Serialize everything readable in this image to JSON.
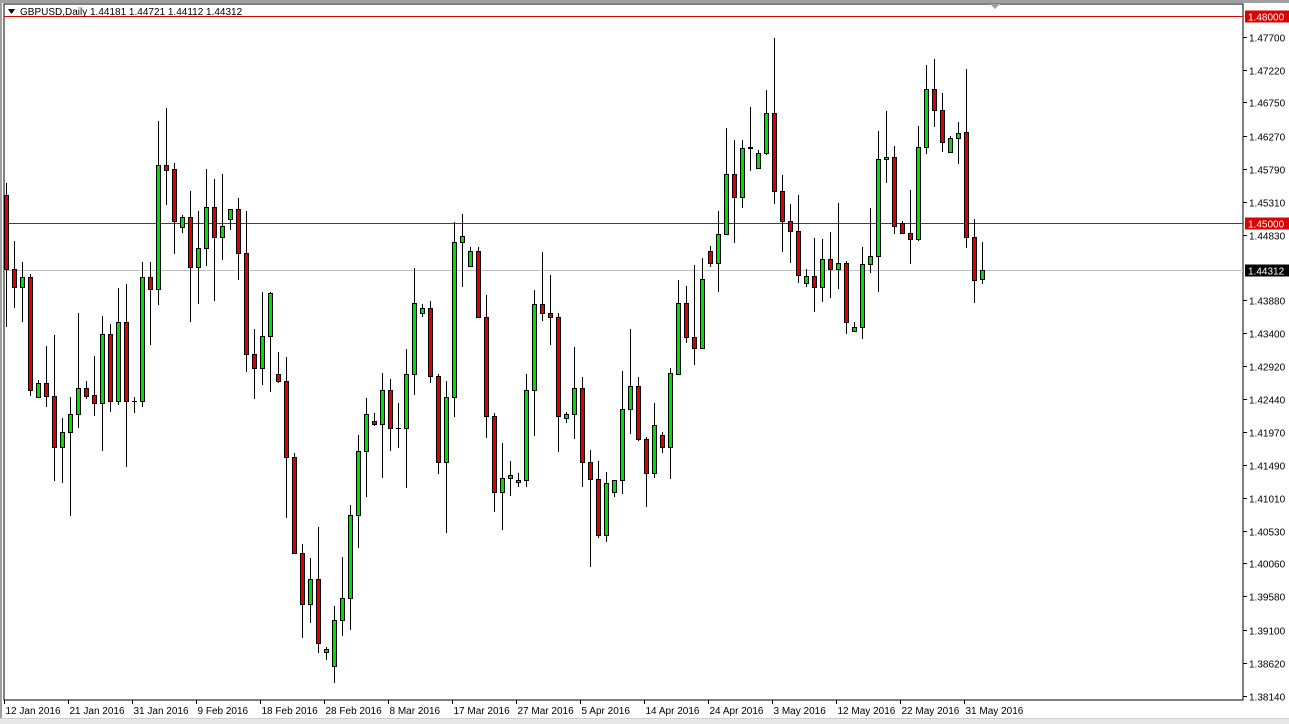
{
  "header": {
    "symbol": "GBPUSD,Daily",
    "ohlc": "1.44181 1.44721 1.44112 1.44312"
  },
  "colors": {
    "bull": "#00dd00",
    "bear": "#dd0000",
    "outline": "#000000",
    "level_line": "#dd0000",
    "price_line": "#c0c0c0",
    "price_label_bg": "#000000"
  },
  "chart_data": {
    "type": "candlestick",
    "title": "GBPUSD,Daily",
    "ylim": [
      1.3814,
      1.48
    ],
    "y_ticks": [
      "1.47700",
      "1.47220",
      "1.46750",
      "1.46270",
      "1.45790",
      "1.45310",
      "1.44830",
      "1.43880",
      "1.43400",
      "1.42920",
      "1.42440",
      "1.41970",
      "1.41490",
      "1.41010",
      "1.40530",
      "1.40060",
      "1.39580",
      "1.39100",
      "1.38620",
      "1.38140"
    ],
    "x_labels": [
      "12 Jan 2016",
      "21 Jan 2016",
      "31 Jan 2016",
      "9 Feb 2016",
      "18 Feb 2016",
      "28 Feb 2016",
      "8 Mar 2016",
      "17 Mar 2016",
      "27 Mar 2016",
      "5 Apr 2016",
      "14 Apr 2016",
      "24 Apr 2016",
      "3 May 2016",
      "12 May 2016",
      "22 May 2016",
      "31 May 2016"
    ],
    "levels": [
      {
        "price": "1.48000",
        "style": "red"
      },
      {
        "price": "1.45000",
        "style": "red"
      }
    ],
    "current_price": "1.44312",
    "candles_ohlc": [
      [
        1.4541,
        1.4558,
        1.4349,
        1.4433
      ],
      [
        1.4433,
        1.4474,
        1.4377,
        1.4407
      ],
      [
        1.4407,
        1.4444,
        1.4357,
        1.4422
      ],
      [
        1.4422,
        1.4426,
        1.4249,
        1.4257
      ],
      [
        1.4248,
        1.4272,
        1.4248,
        1.4268
      ],
      [
        1.4268,
        1.4322,
        1.4233,
        1.4249
      ],
      [
        1.4249,
        1.4338,
        1.4126,
        1.4175
      ],
      [
        1.4175,
        1.4217,
        1.4123,
        1.4197
      ],
      [
        1.4197,
        1.4248,
        1.4075,
        1.4223
      ],
      [
        1.4223,
        1.437,
        1.4203,
        1.4261
      ],
      [
        1.4261,
        1.4271,
        1.4245,
        1.4249
      ],
      [
        1.4251,
        1.4307,
        1.422,
        1.4239
      ],
      [
        1.4239,
        1.4365,
        1.4169,
        1.4339
      ],
      [
        1.4339,
        1.4354,
        1.4226,
        1.4241
      ],
      [
        1.4241,
        1.4406,
        1.4236,
        1.4356
      ],
      [
        1.4356,
        1.4412,
        1.4146,
        1.4241
      ],
      [
        1.4241,
        1.4248,
        1.4225,
        1.4242
      ],
      [
        1.4241,
        1.4444,
        1.4233,
        1.4422
      ],
      [
        1.4422,
        1.4444,
        1.4323,
        1.4404
      ],
      [
        1.4404,
        1.4648,
        1.4381,
        1.4584
      ],
      [
        1.4584,
        1.4667,
        1.4526,
        1.4577
      ],
      [
        1.4578,
        1.4587,
        1.4455,
        1.4503
      ],
      [
        1.4494,
        1.4512,
        1.4486,
        1.4509
      ],
      [
        1.4509,
        1.4547,
        1.4357,
        1.4436
      ],
      [
        1.4436,
        1.4518,
        1.4383,
        1.4464
      ],
      [
        1.4464,
        1.4578,
        1.4438,
        1.4523
      ],
      [
        1.4523,
        1.4564,
        1.4387,
        1.448
      ],
      [
        1.448,
        1.4571,
        1.4446,
        1.4496
      ],
      [
        1.4506,
        1.452,
        1.449,
        1.452
      ],
      [
        1.452,
        1.4536,
        1.4418,
        1.4457
      ],
      [
        1.4457,
        1.4518,
        1.4284,
        1.431
      ],
      [
        1.431,
        1.4346,
        1.4245,
        1.429
      ],
      [
        1.429,
        1.44,
        1.4265,
        1.4336
      ],
      [
        1.4336,
        1.44,
        1.4255,
        1.4399
      ],
      [
        1.4281,
        1.4313,
        1.4268,
        1.4271
      ],
      [
        1.4271,
        1.4306,
        1.4072,
        1.4161
      ],
      [
        1.4161,
        1.4166,
        1.4019,
        1.4021
      ],
      [
        1.4021,
        1.4034,
        1.3898,
        1.3947
      ],
      [
        1.3947,
        1.4014,
        1.392,
        1.3984
      ],
      [
        1.3984,
        1.4059,
        1.3876,
        1.3891
      ],
      [
        1.3877,
        1.3885,
        1.3866,
        1.3882
      ],
      [
        1.3857,
        1.3944,
        1.3833,
        1.3924
      ],
      [
        1.3924,
        1.4016,
        1.39,
        1.3956
      ],
      [
        1.3956,
        1.4091,
        1.391,
        1.4076
      ],
      [
        1.4076,
        1.4193,
        1.4029,
        1.4169
      ],
      [
        1.4169,
        1.4246,
        1.4103,
        1.4223
      ],
      [
        1.4213,
        1.4225,
        1.4205,
        1.4209
      ],
      [
        1.4209,
        1.4283,
        1.413,
        1.4258
      ],
      [
        1.4258,
        1.4274,
        1.4169,
        1.4203
      ],
      [
        1.4203,
        1.4239,
        1.4174,
        1.4203
      ],
      [
        1.4203,
        1.4317,
        1.4116,
        1.4281
      ],
      [
        1.4281,
        1.4435,
        1.4251,
        1.4384
      ],
      [
        1.437,
        1.4383,
        1.4364,
        1.4377
      ],
      [
        1.4377,
        1.4387,
        1.4268,
        1.4278
      ],
      [
        1.4278,
        1.4281,
        1.4136,
        1.4153
      ],
      [
        1.4153,
        1.4271,
        1.405,
        1.4248
      ],
      [
        1.4248,
        1.4502,
        1.4219,
        1.4473
      ],
      [
        1.4473,
        1.4513,
        1.4407,
        1.4481
      ],
      [
        1.4438,
        1.4465,
        1.4438,
        1.446
      ],
      [
        1.446,
        1.4465,
        1.4362,
        1.4364
      ],
      [
        1.4364,
        1.4396,
        1.4188,
        1.422
      ],
      [
        1.422,
        1.4225,
        1.408,
        1.411
      ],
      [
        1.411,
        1.4181,
        1.4054,
        1.413
      ],
      [
        1.413,
        1.4155,
        1.4104,
        1.4135
      ],
      [
        1.4124,
        1.4137,
        1.4117,
        1.4127
      ],
      [
        1.4127,
        1.4281,
        1.4117,
        1.4258
      ],
      [
        1.4258,
        1.4403,
        1.4191,
        1.4383
      ],
      [
        1.4383,
        1.4458,
        1.4358,
        1.437
      ],
      [
        1.437,
        1.4425,
        1.4323,
        1.4364
      ],
      [
        1.4364,
        1.437,
        1.4168,
        1.422
      ],
      [
        1.4217,
        1.4226,
        1.421,
        1.4223
      ],
      [
        1.4223,
        1.432,
        1.4187,
        1.4261
      ],
      [
        1.4261,
        1.4277,
        1.4117,
        1.4153
      ],
      [
        1.4153,
        1.417,
        1.4001,
        1.4129
      ],
      [
        1.4129,
        1.4155,
        1.4043,
        1.4047
      ],
      [
        1.4047,
        1.4139,
        1.4037,
        1.4123
      ],
      [
        1.411,
        1.4127,
        1.4103,
        1.4127
      ],
      [
        1.4127,
        1.4285,
        1.4106,
        1.423
      ],
      [
        1.423,
        1.4346,
        1.4194,
        1.4264
      ],
      [
        1.4264,
        1.4277,
        1.4183,
        1.4187
      ],
      [
        1.4187,
        1.419,
        1.4088,
        1.4137
      ],
      [
        1.4137,
        1.4239,
        1.413,
        1.4207
      ],
      [
        1.4193,
        1.4196,
        1.4166,
        1.4175
      ],
      [
        1.4175,
        1.429,
        1.4129,
        1.4283
      ],
      [
        1.4281,
        1.4418,
        1.4281,
        1.4384
      ],
      [
        1.4384,
        1.4409,
        1.4326,
        1.4335
      ],
      [
        1.4335,
        1.4439,
        1.4294,
        1.4319
      ],
      [
        1.4319,
        1.4449,
        1.4317,
        1.4419
      ],
      [
        1.446,
        1.4467,
        1.4436,
        1.4442
      ],
      [
        1.4442,
        1.4518,
        1.44,
        1.4484
      ],
      [
        1.4484,
        1.4638,
        1.4482,
        1.4571
      ],
      [
        1.4571,
        1.4621,
        1.4471,
        1.4538
      ],
      [
        1.4538,
        1.4621,
        1.4522,
        1.4609
      ],
      [
        1.4609,
        1.4669,
        1.4576,
        1.461
      ],
      [
        1.458,
        1.4606,
        1.458,
        1.4602
      ],
      [
        1.4602,
        1.4693,
        1.4599,
        1.466
      ],
      [
        1.466,
        1.4769,
        1.4528,
        1.4547
      ],
      [
        1.4547,
        1.457,
        1.4458,
        1.4503
      ],
      [
        1.4503,
        1.4528,
        1.4442,
        1.4488
      ],
      [
        1.4488,
        1.4541,
        1.4413,
        1.4425
      ],
      [
        1.4413,
        1.4433,
        1.4407,
        1.4423
      ],
      [
        1.4423,
        1.4478,
        1.4371,
        1.4407
      ],
      [
        1.4407,
        1.4477,
        1.4386,
        1.4448
      ],
      [
        1.4448,
        1.4487,
        1.4391,
        1.4433
      ],
      [
        1.4433,
        1.4529,
        1.4404,
        1.4442
      ],
      [
        1.4442,
        1.4445,
        1.4339,
        1.4357
      ],
      [
        1.4344,
        1.4357,
        1.4342,
        1.4349
      ],
      [
        1.4349,
        1.4465,
        1.4331,
        1.4441
      ],
      [
        1.4441,
        1.4522,
        1.4428,
        1.4452
      ],
      [
        1.4452,
        1.4633,
        1.44,
        1.4593
      ],
      [
        1.4593,
        1.4663,
        1.4558,
        1.4596
      ],
      [
        1.4596,
        1.4612,
        1.4484,
        1.4496
      ],
      [
        1.45,
        1.4503,
        1.4484,
        1.4486
      ],
      [
        1.4486,
        1.4548,
        1.4441,
        1.4477
      ],
      [
        1.4477,
        1.4641,
        1.4474,
        1.461
      ],
      [
        1.461,
        1.473,
        1.46,
        1.4695
      ],
      [
        1.4695,
        1.4738,
        1.4639,
        1.4664
      ],
      [
        1.4664,
        1.4689,
        1.4603,
        1.4618
      ],
      [
        1.4603,
        1.4627,
        1.4601,
        1.4624
      ],
      [
        1.4624,
        1.4646,
        1.4586,
        1.4631
      ],
      [
        1.4632,
        1.4724,
        1.4464,
        1.448
      ],
      [
        1.448,
        1.4506,
        1.4384,
        1.4418
      ],
      [
        1.44181,
        1.44721,
        1.44112,
        1.44312
      ]
    ]
  }
}
